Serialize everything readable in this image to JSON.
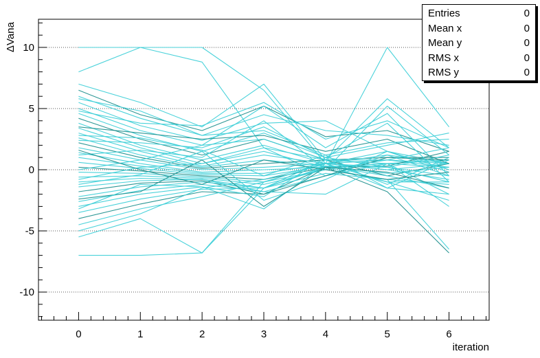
{
  "stats": [
    {
      "label": "Entries",
      "value": "0"
    },
    {
      "label": "Mean x",
      "value": "0"
    },
    {
      "label": "Mean y",
      "value": "0"
    },
    {
      "label": "RMS x",
      "value": "0"
    },
    {
      "label": "RMS y",
      "value": "0"
    }
  ],
  "chart_data": {
    "type": "line",
    "xlabel": "iteration",
    "ylabel": "ΔVana",
    "xlim": [
      -0.65,
      6.65
    ],
    "ylim": [
      -12.3,
      12.3
    ],
    "x_ticks": [
      0,
      1,
      2,
      3,
      4,
      5,
      6
    ],
    "y_ticks": [
      -10,
      -5,
      0,
      5,
      10
    ],
    "grid": "horizontal dotted",
    "colors": {
      "primary": "#40d0d8",
      "secondary": "#20908e"
    },
    "x": [
      0,
      1,
      2,
      3,
      4,
      5,
      6
    ],
    "series": [
      {
        "values": [
          10,
          10,
          10,
          6.5,
          0.5,
          10,
          3.5
        ]
      },
      {
        "values": [
          8,
          10,
          8.8,
          1.8,
          -0.5,
          1.2,
          0.5
        ]
      },
      {
        "values": [
          7,
          5.5,
          3.5,
          7,
          0.8,
          5.8,
          1.8
        ]
      },
      {
        "values": [
          6.5,
          4.5,
          3.2,
          5.2,
          2.7,
          3.2,
          1.5
        ]
      },
      {
        "values": [
          6.0,
          4.2,
          2.8,
          4.5,
          3.2,
          2.8,
          2.0
        ]
      },
      {
        "values": [
          5.5,
          3.6,
          2.4,
          3.8,
          4.0,
          1.5,
          0.5
        ]
      },
      {
        "values": [
          5.0,
          3.2,
          2.0,
          5.2,
          1.8,
          4.6,
          -0.5
        ]
      },
      {
        "values": [
          4.6,
          2.8,
          1.5,
          3.0,
          1.0,
          2.0,
          3.0
        ]
      },
      {
        "values": [
          4.2,
          2.5,
          1.2,
          2.5,
          0.8,
          1.0,
          1.0
        ]
      },
      {
        "values": [
          3.8,
          2.0,
          0.8,
          2.0,
          0.5,
          0.8,
          0.2
        ]
      },
      {
        "values": [
          3.4,
          1.8,
          0.5,
          1.5,
          0.2,
          0.5,
          0.8
        ]
      },
      {
        "values": [
          3.0,
          1.5,
          0.3,
          1.2,
          0.5,
          1.5,
          -0.2
        ]
      },
      {
        "values": [
          2.6,
          1.2,
          0.2,
          0.8,
          0.3,
          0.2,
          1.2
        ]
      },
      {
        "values": [
          2.2,
          1.0,
          0.1,
          0.5,
          0.8,
          -0.5,
          0.5
        ]
      },
      {
        "values": [
          1.8,
          0.8,
          0.0,
          0.2,
          0.5,
          0.0,
          -0.8
        ]
      },
      {
        "values": [
          1.4,
          0.5,
          -0.2,
          0.0,
          0.2,
          0.5,
          0.8
        ]
      },
      {
        "values": [
          1.0,
          0.3,
          -0.3,
          -0.3,
          0.5,
          1.2,
          -0.5
        ]
      },
      {
        "values": [
          0.6,
          0.1,
          -0.4,
          -0.5,
          0.3,
          -0.3,
          0.2
        ]
      },
      {
        "values": [
          0.2,
          -0.1,
          -0.5,
          -0.8,
          0.2,
          0.3,
          1.5
        ]
      },
      {
        "values": [
          -0.2,
          -0.3,
          -0.6,
          -1.0,
          0.5,
          -1.0,
          -1.0
        ]
      },
      {
        "values": [
          -0.6,
          -0.5,
          -0.7,
          -1.2,
          0.0,
          0.8,
          0.5
        ]
      },
      {
        "values": [
          -1.0,
          -0.7,
          -0.8,
          -1.5,
          0.3,
          -0.5,
          -1.5
        ]
      },
      {
        "values": [
          -1.4,
          -0.9,
          -0.8,
          -1.8,
          -0.5,
          0.5,
          0.2
        ]
      },
      {
        "values": [
          -1.8,
          -1.1,
          -0.9,
          -2.0,
          0.2,
          -1.8,
          -6.8
        ]
      },
      {
        "values": [
          -2.2,
          -1.4,
          -1.0,
          -1.5,
          -0.3,
          -0.8,
          -6.5
        ]
      },
      {
        "values": [
          -2.6,
          -1.7,
          -1.2,
          -1.8,
          -2.0,
          0.5,
          -3.0
        ]
      },
      {
        "values": [
          -3.0,
          -2.0,
          -1.4,
          -3.2,
          0.5,
          -1.5,
          -2.0
        ]
      },
      {
        "values": [
          -3.5,
          -2.4,
          -1.6,
          -1.5,
          0.2,
          -1.0,
          -2.5
        ]
      },
      {
        "values": [
          -4.0,
          -2.8,
          -1.8,
          -2.0,
          -0.5,
          1.0,
          0.8
        ]
      },
      {
        "values": [
          -4.5,
          -3.2,
          -2.2,
          -1.0,
          0.0,
          -0.8,
          -1.2
        ]
      },
      {
        "values": [
          -5.0,
          -3.6,
          -1.5,
          -0.8,
          0.5,
          0.2,
          -0.5
        ]
      },
      {
        "values": [
          -5.5,
          -4.0,
          -6.8,
          -1.5,
          0.8,
          -1.2,
          1.0
        ]
      },
      {
        "values": [
          -7.0,
          -7.0,
          -6.8,
          -1.0,
          0.5,
          0.0,
          0.5
        ]
      },
      {
        "values": [
          3.5,
          3.0,
          2.5,
          2.8,
          1.5,
          2.5,
          0.5
        ]
      },
      {
        "values": [
          2.4,
          2.2,
          1.8,
          3.5,
          1.0,
          3.8,
          -1.0
        ]
      },
      {
        "values": [
          1.2,
          1.6,
          1.0,
          4.0,
          0.0,
          5.2,
          1.2
        ]
      },
      {
        "values": [
          0.0,
          0.8,
          2.0,
          2.5,
          0.8,
          0.5,
          -2.0
        ]
      },
      {
        "values": [
          -1.2,
          -0.4,
          1.5,
          -2.5,
          -0.8,
          1.5,
          0.0
        ]
      },
      {
        "values": [
          -2.4,
          -1.8,
          0.8,
          -3.0,
          0.2,
          -0.2,
          -1.5
        ]
      },
      {
        "values": [
          4.8,
          3.8,
          3.6,
          5.5,
          2.5,
          4.0,
          1.8
        ]
      },
      {
        "values": [
          5.8,
          4.8,
          2.8,
          3.2,
          1.2,
          2.2,
          2.5
        ]
      },
      {
        "values": [
          2.8,
          2.6,
          1.6,
          -0.5,
          1.2,
          -1.5,
          0.8
        ]
      },
      {
        "values": [
          -0.8,
          0.2,
          0.5,
          1.8,
          0.8,
          0.8,
          1.8
        ]
      },
      {
        "values": [
          1.6,
          0.0,
          -1.2,
          0.8,
          0.0,
          -0.8,
          -0.2
        ]
      },
      {
        "values": [
          -3.2,
          -1.2,
          -1.4,
          -2.2,
          1.0,
          0.2,
          -1.0
        ]
      }
    ]
  }
}
